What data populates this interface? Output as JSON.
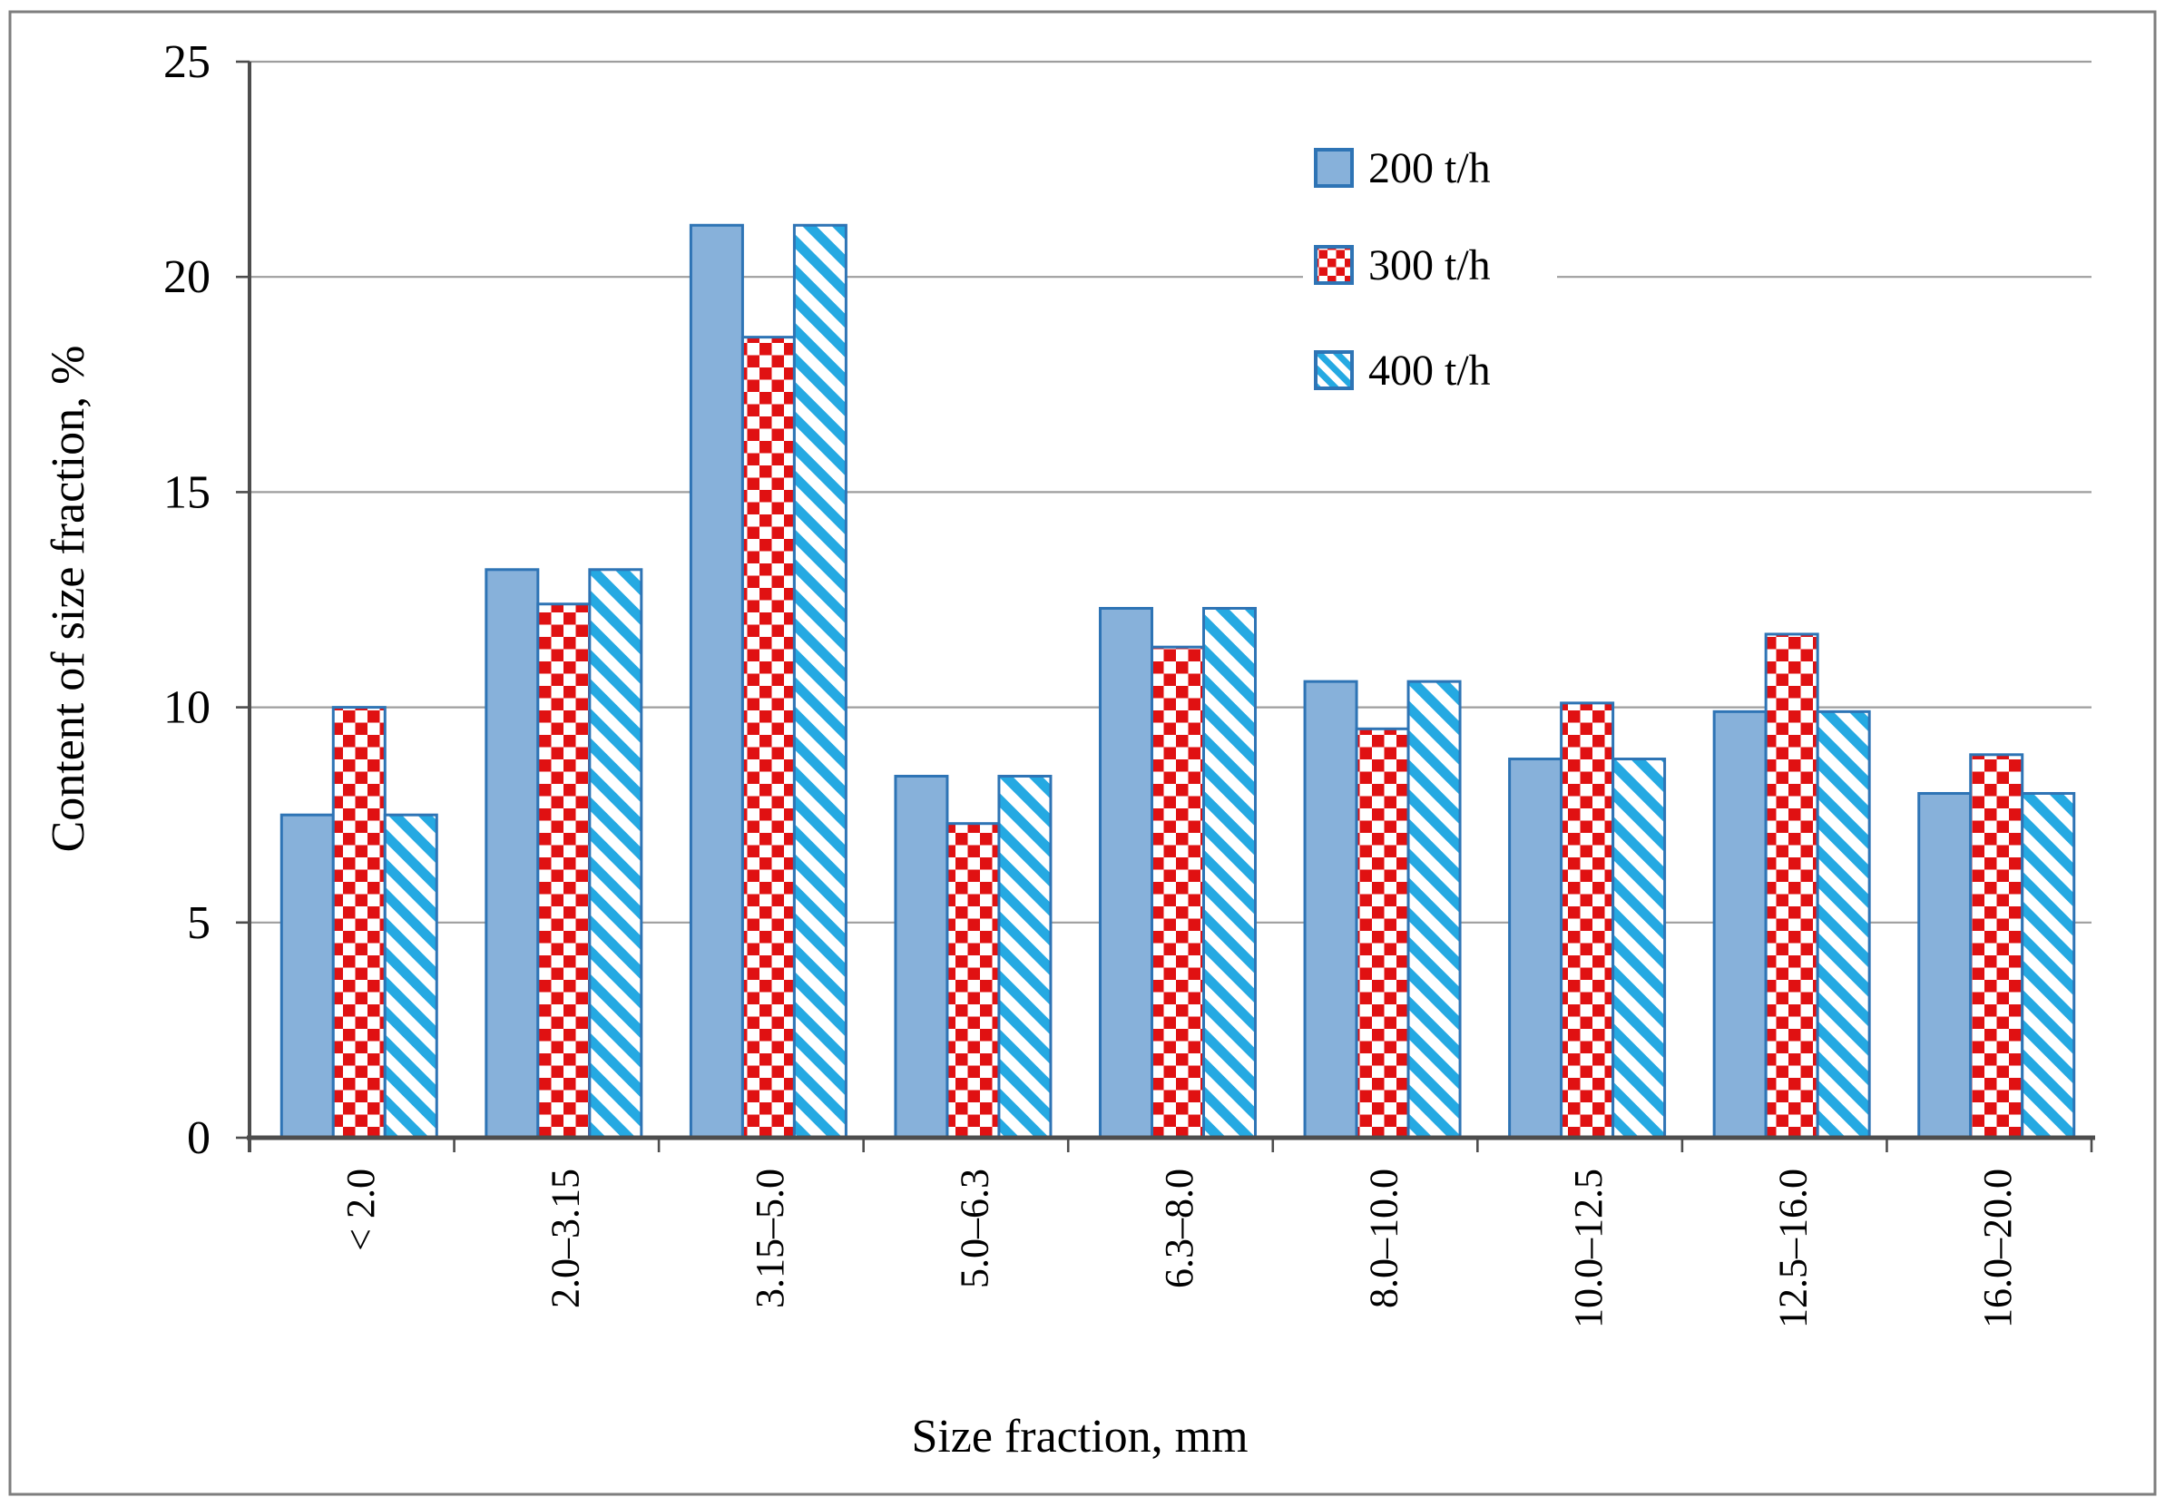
{
  "chart_data": {
    "type": "bar",
    "title": "",
    "categories": [
      "< 2.0",
      "2.0–3.15",
      "3.15–5.0",
      "5.0–6.3",
      "6.3–8.0",
      "8.0–10.0",
      "10.0–12.5",
      "12.5–16.0",
      "16.0–20.0"
    ],
    "series": [
      {
        "name": "200 t/h",
        "pattern": "solid",
        "values": [
          7.5,
          13.2,
          21.2,
          8.4,
          12.3,
          10.6,
          8.8,
          9.9,
          8.0
        ]
      },
      {
        "name": "300 t/h",
        "pattern": "checker",
        "values": [
          10.0,
          12.4,
          18.6,
          7.3,
          11.4,
          9.5,
          10.1,
          11.7,
          8.9
        ]
      },
      {
        "name": "400 t/h",
        "pattern": "stripe",
        "values": [
          7.5,
          13.2,
          21.2,
          8.4,
          12.3,
          10.6,
          8.8,
          9.9,
          8.0
        ]
      }
    ],
    "xlabel": "Size fraction, mm",
    "ylabel": "Content of size fraction, %",
    "ylim": [
      0,
      25
    ],
    "yticks": [
      0,
      5,
      10,
      15,
      20,
      25
    ],
    "grid": true,
    "legend_position": "upper-right"
  },
  "legend": {
    "items": [
      {
        "label": "200 t/h",
        "swatch": "solid-blue-square"
      },
      {
        "label": "300 t/h",
        "swatch": "red-checker-square"
      },
      {
        "label": "400 t/h",
        "swatch": "cyan-stripe-square"
      }
    ]
  },
  "colors": {
    "bar_fill_blue": "#87B1DA",
    "bar_border_blue": "#2E74B5",
    "checker_red": "#E01112",
    "stripe_cyan": "#25A9E2",
    "pattern_bg": "#FFFFFF",
    "gridline": "#9E9E9E",
    "axis_dark": "#4D4D4D",
    "frame": "#7E7E7E",
    "text": "#000000"
  }
}
